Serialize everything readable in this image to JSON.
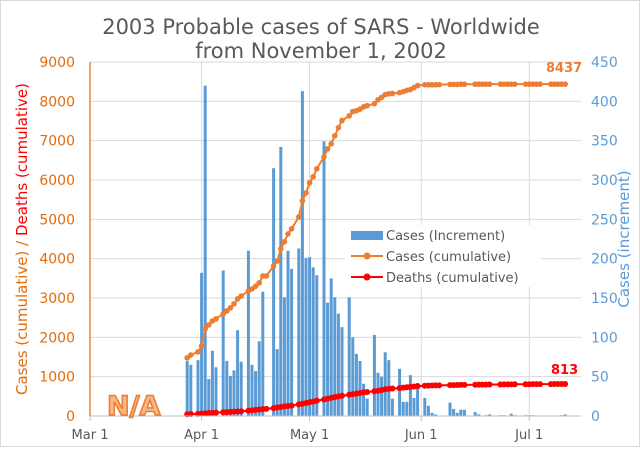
{
  "chart_data": {
    "type": "bar+line",
    "title_line1": "2003 Probable cases of SARS - Worldwide",
    "title_line2": "from November 1, 2002",
    "ylabel_left_part1": "Cases (cumulative)",
    "ylabel_left_sep": " / ",
    "ylabel_left_part2": "Deaths (cumulative)",
    "ylabel_right": "Cases (increment)",
    "ylim_left": [
      0,
      9000
    ],
    "ylim_right": [
      0,
      450
    ],
    "yticks_left": [
      "0",
      "1000",
      "2000",
      "3000",
      "4000",
      "5000",
      "6000",
      "7000",
      "8000",
      "9000"
    ],
    "yticks_right": [
      "0",
      "50",
      "100",
      "150",
      "200",
      "250",
      "300",
      "350",
      "400",
      "450"
    ],
    "xlim": [
      "2003-03-01",
      "2003-07-16"
    ],
    "xticks": [
      {
        "date": "2003-03-01",
        "label": "Mar 1"
      },
      {
        "date": "2003-04-01",
        "label": "Apr 1"
      },
      {
        "date": "2003-05-01",
        "label": "May 1"
      },
      {
        "date": "2003-06-01",
        "label": "Jun 1"
      },
      {
        "date": "2003-07-01",
        "label": "Jul 1"
      }
    ],
    "grid": true,
    "legend_position": "center-right",
    "colors": {
      "increment": "#5B9BD5",
      "cumulative": "#ED7D31",
      "deaths": "#FF0000",
      "left_axis": "#E46C0A",
      "text": "#595959"
    },
    "legend": [
      "Cases (Increment)",
      "Cases (cumulative)",
      "Deaths (cumulative)"
    ],
    "no_data_mark": "N/A",
    "annotations": {
      "final_cases": "8437",
      "final_deaths": "813"
    },
    "increment": [
      [
        "2003-03-28",
        70
      ],
      [
        "2003-03-29",
        65
      ],
      [
        "2003-03-31",
        71
      ],
      [
        "2003-04-01",
        182
      ],
      [
        "2003-04-02",
        420
      ],
      [
        "2003-04-03",
        47
      ],
      [
        "2003-04-04",
        83
      ],
      [
        "2003-04-05",
        62
      ],
      [
        "2003-04-07",
        185
      ],
      [
        "2003-04-08",
        70
      ],
      [
        "2003-04-09",
        51
      ],
      [
        "2003-04-10",
        58
      ],
      [
        "2003-04-11",
        109
      ],
      [
        "2003-04-12",
        69
      ],
      [
        "2003-04-14",
        210
      ],
      [
        "2003-04-15",
        65
      ],
      [
        "2003-04-16",
        57
      ],
      [
        "2003-04-17",
        95
      ],
      [
        "2003-04-18",
        158
      ],
      [
        "2003-04-21",
        315
      ],
      [
        "2003-04-22",
        85
      ],
      [
        "2003-04-23",
        342
      ],
      [
        "2003-04-24",
        151
      ],
      [
        "2003-04-25",
        210
      ],
      [
        "2003-04-26",
        187
      ],
      [
        "2003-04-28",
        213
      ],
      [
        "2003-04-29",
        413
      ],
      [
        "2003-04-30",
        201
      ],
      [
        "2003-05-01",
        202
      ],
      [
        "2003-05-02",
        189
      ],
      [
        "2003-05-03",
        179
      ],
      [
        "2003-05-05",
        349
      ],
      [
        "2003-05-06",
        144
      ],
      [
        "2003-05-07",
        175
      ],
      [
        "2003-05-08",
        151
      ],
      [
        "2003-05-09",
        130
      ],
      [
        "2003-05-10",
        113
      ],
      [
        "2003-05-12",
        151
      ],
      [
        "2003-05-13",
        100
      ],
      [
        "2003-05-14",
        79
      ],
      [
        "2003-05-15",
        70
      ],
      [
        "2003-05-16",
        41
      ],
      [
        "2003-05-17",
        22
      ],
      [
        "2003-05-19",
        103
      ],
      [
        "2003-05-20",
        55
      ],
      [
        "2003-05-21",
        50
      ],
      [
        "2003-05-22",
        81
      ],
      [
        "2003-05-23",
        71
      ],
      [
        "2003-05-24",
        22
      ],
      [
        "2003-05-26",
        60
      ],
      [
        "2003-05-27",
        18
      ],
      [
        "2003-05-28",
        18
      ],
      [
        "2003-05-29",
        52
      ],
      [
        "2003-05-30",
        23
      ],
      [
        "2003-05-31",
        42
      ],
      [
        "2003-06-02",
        23
      ],
      [
        "2003-06-03",
        13
      ],
      [
        "2003-06-04",
        4
      ],
      [
        "2003-06-05",
        2
      ],
      [
        "2003-06-09",
        17
      ],
      [
        "2003-06-10",
        9
      ],
      [
        "2003-06-11",
        4
      ],
      [
        "2003-06-12",
        8
      ],
      [
        "2003-06-13",
        8
      ],
      [
        "2003-06-16",
        5
      ],
      [
        "2003-06-17",
        2
      ],
      [
        "2003-06-19",
        1
      ],
      [
        "2003-06-20",
        2
      ],
      [
        "2003-06-23",
        1
      ],
      [
        "2003-06-24",
        1
      ],
      [
        "2003-06-26",
        3
      ],
      [
        "2003-06-27",
        1
      ],
      [
        "2003-06-30",
        1
      ],
      [
        "2003-07-01",
        1
      ],
      [
        "2003-07-02",
        1
      ],
      [
        "2003-07-10",
        1
      ],
      [
        "2003-07-11",
        2
      ]
    ],
    "cumulative": [
      [
        "2003-03-28",
        1480,
        45
      ],
      [
        "2003-03-29",
        1550,
        50
      ],
      [
        "2003-03-31",
        1630,
        55
      ],
      [
        "2003-04-01",
        1780,
        60
      ],
      [
        "2003-04-02",
        2215,
        70
      ],
      [
        "2003-04-03",
        2315,
        75
      ],
      [
        "2003-04-04",
        2415,
        80
      ],
      [
        "2003-04-05",
        2470,
        85
      ],
      [
        "2003-04-07",
        2595,
        95
      ],
      [
        "2003-04-08",
        2670,
        100
      ],
      [
        "2003-04-09",
        2750,
        105
      ],
      [
        "2003-04-10",
        2850,
        110
      ],
      [
        "2003-04-11",
        2980,
        115
      ],
      [
        "2003-04-12",
        3050,
        120
      ],
      [
        "2003-04-14",
        3180,
        135
      ],
      [
        "2003-04-15",
        3230,
        145
      ],
      [
        "2003-04-16",
        3300,
        155
      ],
      [
        "2003-04-17",
        3385,
        165
      ],
      [
        "2003-04-18",
        3560,
        175
      ],
      [
        "2003-04-19",
        3560,
        180
      ],
      [
        "2003-04-21",
        3815,
        200
      ],
      [
        "2003-04-22",
        3940,
        215
      ],
      [
        "2003-04-23",
        4250,
        230
      ],
      [
        "2003-04-24",
        4430,
        245
      ],
      [
        "2003-04-25",
        4630,
        255
      ],
      [
        "2003-04-26",
        4760,
        265
      ],
      [
        "2003-04-28",
        5060,
        295
      ],
      [
        "2003-04-29",
        5470,
        310
      ],
      [
        "2003-04-30",
        5670,
        330
      ],
      [
        "2003-05-01",
        5930,
        350
      ],
      [
        "2003-05-02",
        6080,
        370
      ],
      [
        "2003-05-03",
        6285,
        390
      ],
      [
        "2003-05-05",
        6590,
        420
      ],
      [
        "2003-05-06",
        6790,
        440
      ],
      [
        "2003-05-07",
        6920,
        460
      ],
      [
        "2003-05-08",
        7125,
        480
      ],
      [
        "2003-05-09",
        7330,
        500
      ],
      [
        "2003-05-10",
        7510,
        515
      ],
      [
        "2003-05-12",
        7630,
        540
      ],
      [
        "2003-05-13",
        7740,
        555
      ],
      [
        "2003-05-14",
        7760,
        570
      ],
      [
        "2003-05-15",
        7800,
        585
      ],
      [
        "2003-05-16",
        7860,
        600
      ],
      [
        "2003-05-17",
        7890,
        610
      ],
      [
        "2003-05-19",
        7940,
        630
      ],
      [
        "2003-05-20",
        8040,
        640
      ],
      [
        "2003-05-21",
        8100,
        660
      ],
      [
        "2003-05-22",
        8170,
        680
      ],
      [
        "2003-05-23",
        8190,
        690
      ],
      [
        "2003-05-24",
        8200,
        700
      ],
      [
        "2003-05-26",
        8220,
        710
      ],
      [
        "2003-05-27",
        8245,
        720
      ],
      [
        "2003-05-28",
        8280,
        730
      ],
      [
        "2003-05-29",
        8300,
        740
      ],
      [
        "2003-05-30",
        8350,
        750
      ],
      [
        "2003-05-31",
        8400,
        760
      ],
      [
        "2003-06-02",
        8420,
        770
      ],
      [
        "2003-06-03",
        8420,
        772
      ],
      [
        "2003-06-04",
        8420,
        775
      ],
      [
        "2003-06-05",
        8420,
        778
      ],
      [
        "2003-06-06",
        8425,
        780
      ],
      [
        "2003-06-09",
        8430,
        785
      ],
      [
        "2003-06-10",
        8430,
        786
      ],
      [
        "2003-06-11",
        8430,
        788
      ],
      [
        "2003-06-12",
        8435,
        790
      ],
      [
        "2003-06-13",
        8435,
        792
      ],
      [
        "2003-06-16",
        8435,
        795
      ],
      [
        "2003-06-17",
        8435,
        797
      ],
      [
        "2003-06-18",
        8435,
        798
      ],
      [
        "2003-06-19",
        8436,
        799
      ],
      [
        "2003-06-20",
        8436,
        800
      ],
      [
        "2003-06-23",
        8436,
        802
      ],
      [
        "2003-06-24",
        8436,
        803
      ],
      [
        "2003-06-25",
        8436,
        804
      ],
      [
        "2003-06-26",
        8437,
        805
      ],
      [
        "2003-06-27",
        8437,
        806
      ],
      [
        "2003-06-30",
        8437,
        807
      ],
      [
        "2003-07-01",
        8437,
        808
      ],
      [
        "2003-07-02",
        8437,
        809
      ],
      [
        "2003-07-03",
        8437,
        810
      ],
      [
        "2003-07-04",
        8437,
        810
      ],
      [
        "2003-07-07",
        8437,
        811
      ],
      [
        "2003-07-08",
        8437,
        812
      ],
      [
        "2003-07-09",
        8437,
        812
      ],
      [
        "2003-07-10",
        8437,
        813
      ],
      [
        "2003-07-11",
        8437,
        813
      ]
    ]
  }
}
